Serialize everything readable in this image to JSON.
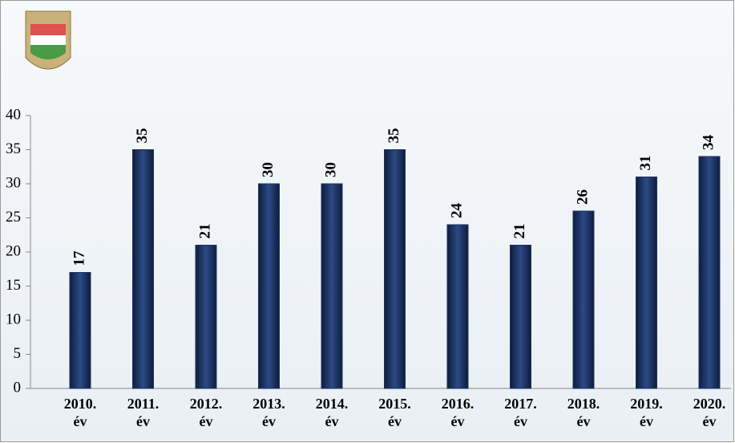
{
  "chart_data": {
    "type": "bar",
    "categories": [
      "2010. év",
      "2011. év",
      "2012. év",
      "2013. év",
      "2014. év",
      "2015. év",
      "2016. év",
      "2017. év",
      "2018. év",
      "2019. év",
      "2020. év"
    ],
    "values": [
      17,
      35,
      21,
      30,
      30,
      35,
      24,
      21,
      26,
      31,
      34
    ],
    "color": "#1c3362",
    "ylim": [
      0,
      40
    ],
    "yticks": [
      0,
      5,
      10,
      15,
      20,
      25,
      30,
      35,
      40
    ]
  }
}
